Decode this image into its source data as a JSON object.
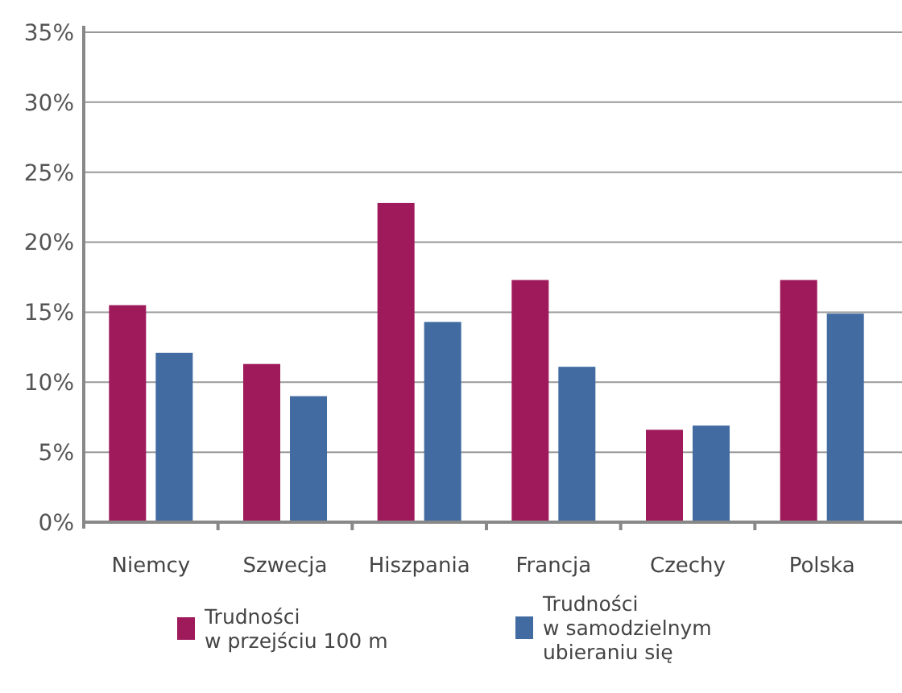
{
  "chart_data": {
    "type": "bar",
    "categories": [
      "Niemcy",
      "Szwecja",
      "Hiszpania",
      "Francja",
      "Czechy",
      "Polska"
    ],
    "series": [
      {
        "name": "Trudności\nw przejściu 100 m",
        "color": "#9e1a5a",
        "values": [
          15.5,
          11.3,
          22.8,
          17.3,
          6.6,
          17.3
        ]
      },
      {
        "name": "Trudności\nw samodzielnym\nubieraniu się",
        "color": "#416ba1",
        "values": [
          12.1,
          9.0,
          14.3,
          11.1,
          6.9,
          14.9
        ]
      }
    ],
    "ylim": [
      0,
      35
    ],
    "yticks": [
      {
        "value": 0,
        "label": "0%"
      },
      {
        "value": 5,
        "label": "5%"
      },
      {
        "value": 10,
        "label": "10%"
      },
      {
        "value": 15,
        "label": "15%"
      },
      {
        "value": 20,
        "label": "20%"
      },
      {
        "value": 25,
        "label": "25%"
      },
      {
        "value": 30,
        "label": "30%"
      },
      {
        "value": 35,
        "label": "35%"
      }
    ],
    "grid": "y",
    "legend": "bottom"
  }
}
